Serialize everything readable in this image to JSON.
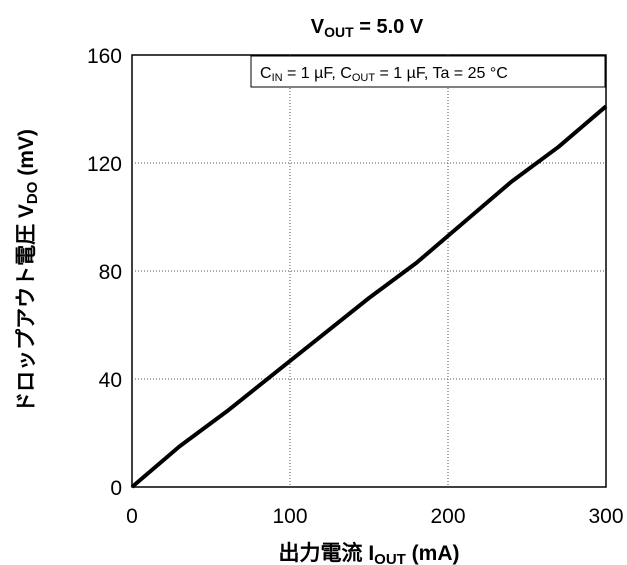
{
  "chart_data": {
    "type": "line",
    "title": {
      "main": "V",
      "sub": "OUT",
      "rest": " = 5.0 V"
    },
    "annotation": {
      "c_in": "C",
      "c_in_sub": "IN",
      "c_in_rest": " = 1 µF, ",
      "c_out": "C",
      "c_out_sub": "OUT",
      "c_out_rest": " = 1 µF, Ta = 25 °C"
    },
    "xlabel": {
      "main": "出力電流  I",
      "sub": "OUT",
      "rest": " (mA)"
    },
    "ylabel": {
      "main": "ドロップアウト電圧  V",
      "sub": "DO",
      "rest": " (mV)"
    },
    "xlim": [
      0,
      300
    ],
    "ylim": [
      0,
      160
    ],
    "xticks": [
      "0",
      "100",
      "200",
      "300"
    ],
    "yticks": [
      "0",
      "40",
      "80",
      "120",
      "160"
    ],
    "grid": true,
    "line_color": "#000000",
    "series": [
      {
        "x": [
          0,
          30,
          60,
          90,
          120,
          150,
          180,
          210,
          240,
          270,
          300
        ],
        "y": [
          0,
          15,
          28,
          42,
          56,
          70,
          83,
          98,
          113,
          126,
          141
        ]
      }
    ]
  }
}
